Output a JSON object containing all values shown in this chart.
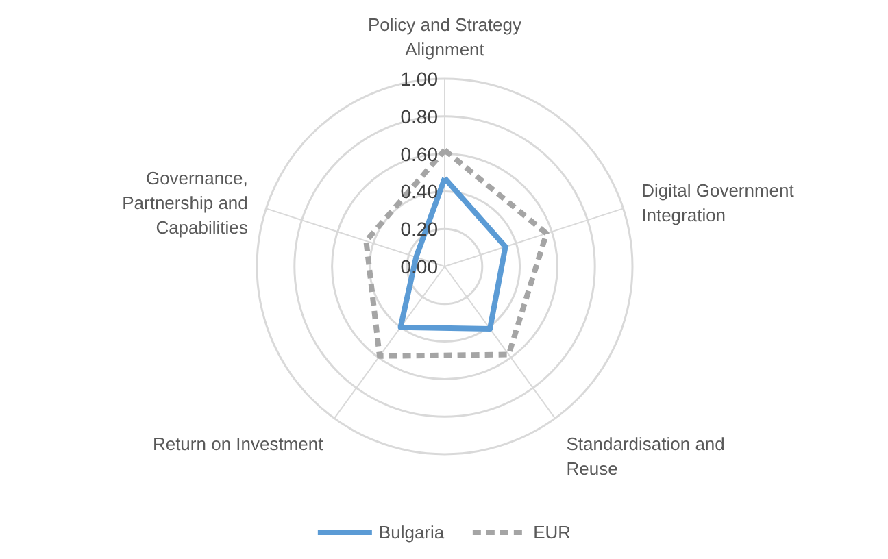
{
  "chart_data": {
    "type": "radar",
    "categories": [
      "Policy and Strategy Alignment",
      "Digital Government Integration",
      "Standardisation and Reuse",
      "Return on Investment",
      "Governance, Partnership and Capabilities"
    ],
    "series": [
      {
        "name": "Bulgaria",
        "color": "#5b9bd5",
        "line_style": "solid",
        "values": [
          0.47,
          0.34,
          0.41,
          0.4,
          0.16
        ]
      },
      {
        "name": "EUR",
        "color": "#a5a5a5",
        "line_style": "dashed",
        "values": [
          0.62,
          0.57,
          0.58,
          0.59,
          0.44
        ]
      }
    ],
    "ylim": [
      0,
      1
    ],
    "yticks": [
      {
        "value": 0,
        "label": "0.00"
      },
      {
        "value": 0.2,
        "label": "0.20"
      },
      {
        "value": 0.4,
        "label": "0.40"
      },
      {
        "value": 0.6,
        "label": "0.60"
      },
      {
        "value": 0.8,
        "label": "0.80"
      },
      {
        "value": 1,
        "label": "1.00"
      }
    ],
    "grid": true,
    "legend": "bottom",
    "marker": "none"
  }
}
